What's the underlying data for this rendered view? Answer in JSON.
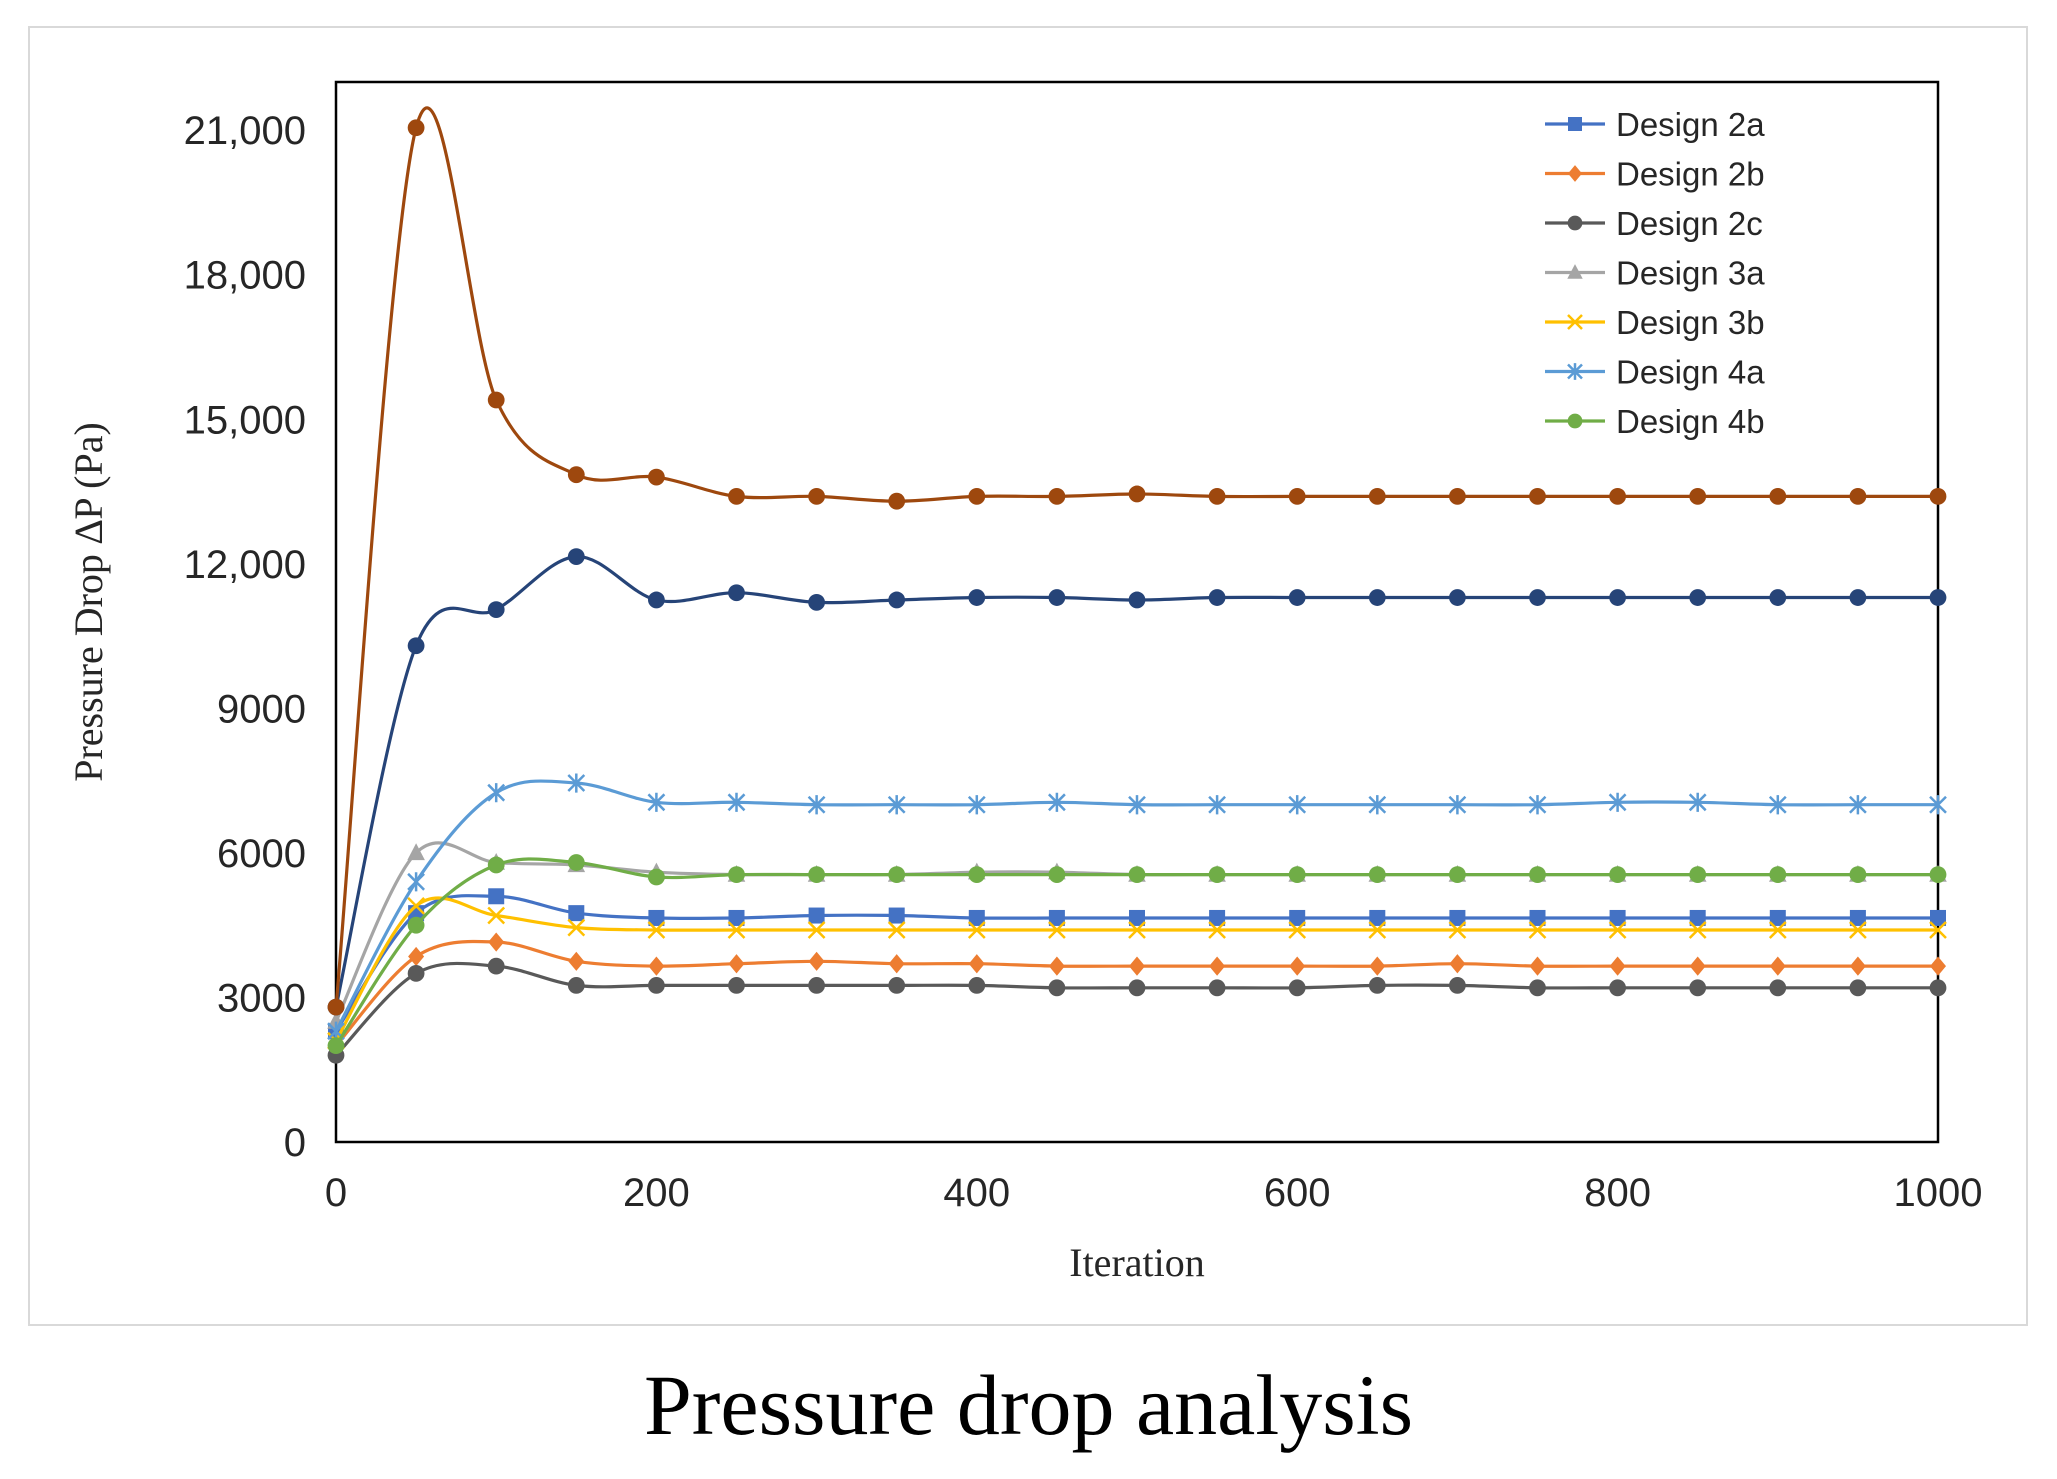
{
  "caption": "Pressure drop analysis",
  "chart_data": {
    "type": "line",
    "title": "",
    "xlabel": "Iteration",
    "ylabel": "Pressure Drop ∆P (Pa)",
    "xlim": [
      0,
      1000
    ],
    "ylim": [
      0,
      22000
    ],
    "x_ticks": [
      0,
      200,
      400,
      600,
      800,
      1000
    ],
    "x_tick_labels": [
      "0",
      "200",
      "400",
      "600",
      "800",
      "1000"
    ],
    "y_ticks": [
      0,
      3000,
      6000,
      9000,
      12000,
      15000,
      18000,
      21000
    ],
    "y_tick_labels": [
      "0",
      "3000",
      "6000",
      "9000",
      "12,000",
      "15,000",
      "18,000",
      "21,000"
    ],
    "grid": false,
    "legend_position": "top-right",
    "x": [
      0,
      50,
      100,
      150,
      200,
      250,
      300,
      350,
      400,
      450,
      500,
      550,
      600,
      650,
      700,
      750,
      800,
      850,
      900,
      950,
      1000
    ],
    "series": [
      {
        "name": "Design 2a",
        "color": "#4472c4",
        "marker": "square",
        "values": [
          2300,
          4750,
          5100,
          4750,
          4650,
          4650,
          4700,
          4700,
          4650,
          4650,
          4650,
          4650,
          4650,
          4650,
          4650,
          4650,
          4650,
          4650,
          4650,
          4650,
          4650
        ]
      },
      {
        "name": "Design 2b",
        "color": "#ed7d31",
        "marker": "diamond",
        "values": [
          2000,
          3850,
          4150,
          3750,
          3650,
          3700,
          3750,
          3700,
          3700,
          3650,
          3650,
          3650,
          3650,
          3650,
          3700,
          3650,
          3650,
          3650,
          3650,
          3650,
          3650
        ]
      },
      {
        "name": "Design 2c",
        "color": "#595959",
        "marker": "circle",
        "values": [
          1800,
          3500,
          3650,
          3250,
          3250,
          3250,
          3250,
          3250,
          3250,
          3200,
          3200,
          3200,
          3200,
          3250,
          3250,
          3200,
          3200,
          3200,
          3200,
          3200,
          3200
        ]
      },
      {
        "name": "Design 3a",
        "color": "#a5a5a5",
        "marker": "triangle",
        "values": [
          2500,
          6000,
          5800,
          5750,
          5600,
          5550,
          5550,
          5550,
          5600,
          5600,
          5550,
          5550,
          5550,
          5550,
          5550,
          5550,
          5550,
          5550,
          5550,
          5550,
          5550
        ]
      },
      {
        "name": "Design 3b",
        "color": "#ffc000",
        "marker": "x",
        "values": [
          2100,
          4900,
          4700,
          4450,
          4400,
          4400,
          4400,
          4400,
          4400,
          4400,
          4400,
          4400,
          4400,
          4400,
          4400,
          4400,
          4400,
          4400,
          4400,
          4400,
          4400
        ]
      },
      {
        "name": "Design 4a",
        "color": "#5b9bd5",
        "marker": "star",
        "values": [
          2300,
          5400,
          7250,
          7450,
          7050,
          7050,
          7000,
          7000,
          7000,
          7050,
          7000,
          7000,
          7000,
          7000,
          7000,
          7000,
          7050,
          7050,
          7000,
          7000,
          7000
        ]
      },
      {
        "name": "Design 4b",
        "color": "#70ad47",
        "marker": "circle",
        "values": [
          2000,
          4500,
          5750,
          5800,
          5500,
          5550,
          5550,
          5550,
          5550,
          5550,
          5550,
          5550,
          5550,
          5550,
          5550,
          5550,
          5550,
          5550,
          5550,
          5550,
          5550
        ]
      },
      {
        "name": "",
        "color": "#264478",
        "marker": "circle",
        "values": [
          2800,
          10300,
          11050,
          12150,
          11250,
          11400,
          11200,
          11250,
          11300,
          11300,
          11250,
          11300,
          11300,
          11300,
          11300,
          11300,
          11300,
          11300,
          11300,
          11300,
          11300
        ]
      },
      {
        "name": "",
        "color": "#9e480e",
        "marker": "circle",
        "values": [
          2800,
          21050,
          15400,
          13850,
          13800,
          13400,
          13400,
          13300,
          13400,
          13400,
          13450,
          13400,
          13400,
          13400,
          13400,
          13400,
          13400,
          13400,
          13400,
          13400,
          13400
        ]
      }
    ]
  }
}
